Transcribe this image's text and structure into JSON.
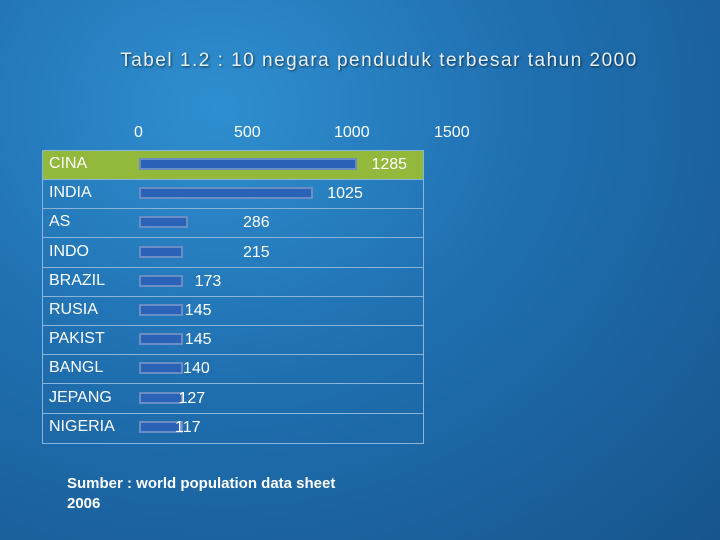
{
  "title": "Tabel 1.2 : 10 negara penduduk terbesar tahun 2000",
  "source_line1": "Sumber : world population data sheet",
  "source_line2": "2006",
  "colors": {
    "bar": "#2a62b8",
    "highlight_row": "#93b93c",
    "background": "#1f6fb0"
  },
  "chart_data": {
    "type": "bar",
    "orientation": "horizontal",
    "title": "Tabel 1.2 : 10 negara penduduk terbesar tahun 2000",
    "axis_ticks": [
      "0",
      "500",
      "1000",
      "1500"
    ],
    "xlim": [
      0,
      1500
    ],
    "categories": [
      "CINA",
      "INDIA",
      "AS",
      "INDO",
      "BRAZIL",
      "RUSIA",
      "PAKIST",
      "BANGL",
      "JEPANG",
      "NIGERIA"
    ],
    "values": [
      1285,
      1025,
      286,
      215,
      173,
      145,
      145,
      140,
      127,
      117
    ],
    "highlighted_category": "CINA",
    "grid": false
  }
}
